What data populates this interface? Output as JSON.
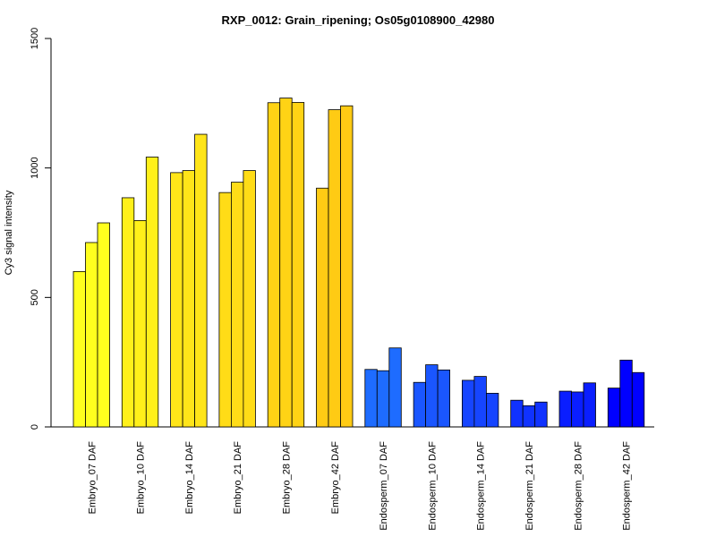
{
  "chart_data": {
    "type": "bar",
    "title": "RXP_0012: Grain_ripening; Os05g0108900_42980",
    "xlabel": "",
    "ylabel": "Cy3 signal intensity",
    "ylim": [
      0,
      1500
    ],
    "yticks": [
      0,
      500,
      1000,
      1500
    ],
    "grid": false,
    "categories": [
      "Embryo_07 DAF",
      "Embryo_10 DAF",
      "Embryo_14 DAF",
      "Embryo_21 DAF",
      "Embryo_28 DAF",
      "Embryo_42 DAF",
      "Endosperm_07 DAF",
      "Endosperm_10 DAF",
      "Endosperm_14 DAF",
      "Endosperm_21 DAF",
      "Endosperm_28 DAF",
      "Endosperm_42 DAF"
    ],
    "colors": [
      "#ffff1e",
      "#fff01a",
      "#ffe519",
      "#ffdc17",
      "#ffd315",
      "#ffcb14",
      "#1e6cff",
      "#1a56ff",
      "#1645ff",
      "#1032ff",
      "#0a1eff",
      "#0000ff"
    ],
    "series": [
      {
        "values": [
          600,
          885,
          982,
          905,
          1252,
          922,
          222,
          172,
          180,
          103,
          138,
          150
        ]
      },
      {
        "values": [
          712,
          797,
          990,
          945,
          1270,
          1225,
          217,
          240,
          195,
          82,
          135,
          258
        ]
      },
      {
        "values": [
          788,
          1042,
          1130,
          990,
          1253,
          1240,
          305,
          220,
          130,
          96,
          170,
          210
        ]
      }
    ]
  }
}
